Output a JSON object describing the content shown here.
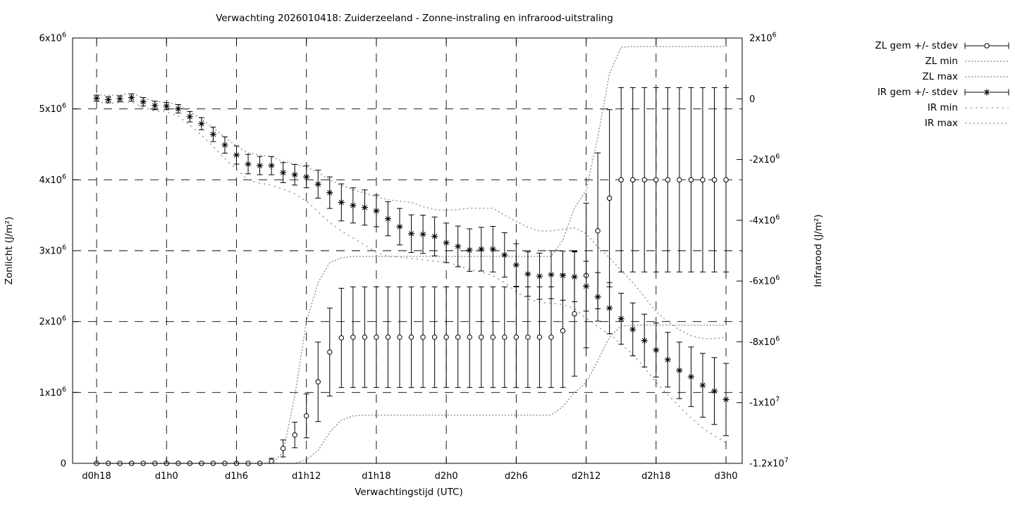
{
  "title": "Verwachting 2026010418: Zuiderzeeland - Zonne-instraling en infrarood-uitstraling",
  "axes": {
    "x": {
      "label": "Verwachtingstijd (UTC)",
      "tick_hours": [
        0,
        6,
        12,
        18,
        24,
        30,
        36,
        42,
        48,
        54
      ],
      "tick_labels": [
        "d0h18",
        "d1h0",
        "d1h6",
        "d1h12",
        "d1h18",
        "d2h0",
        "d2h6",
        "d2h12",
        "d2h18",
        "d3h0"
      ]
    },
    "y_left": {
      "label": "Zonlicht (J/m²)",
      "tick_values_e6": [
        0,
        1,
        2,
        3,
        4,
        5,
        6
      ],
      "tick_labels": [
        "0",
        "1x10^6",
        "2x10^6",
        "3x10^6",
        "4x10^6",
        "5x10^6",
        "6x10^6"
      ],
      "range_e6": [
        0,
        6
      ]
    },
    "y_right": {
      "label": "Infrarood (J/m²)",
      "tick_values_e6": [
        -12,
        -10,
        -8,
        -6,
        -4,
        -2,
        0,
        2
      ],
      "tick_labels": [
        "-1.2x10^7",
        "-1x10^7",
        "-8x10^6",
        "-6x10^6",
        "-4x10^6",
        "-2x10^6",
        "0",
        "2x10^6"
      ],
      "range_e6": [
        -12,
        2
      ]
    }
  },
  "legend": {
    "items": [
      {
        "label": "ZL gem +/- stdev",
        "sample": "errorbar",
        "marker": "circle"
      },
      {
        "label": "ZL min",
        "sample": "dotted-fine"
      },
      {
        "label": "ZL max",
        "sample": "dotted-fine"
      },
      {
        "label": "IR gem +/- stdev",
        "sample": "errorbar",
        "marker": "asterisk"
      },
      {
        "label": "IR min",
        "sample": "dotted-sparse"
      },
      {
        "label": "IR max",
        "sample": "dotted-medium"
      }
    ]
  },
  "colors": {
    "foreground": "#000000",
    "envelope": "#999999",
    "grid": "#000000",
    "background": "#ffffff"
  },
  "chart_data": {
    "type": "line",
    "subtype": "errorbars with min/max dotted envelopes (gnuplot style)",
    "title": "Verwachting 2026010418: Zuiderzeeland - Zonne-instraling en infrarood-uitstraling",
    "xlabel": "Verwachtingstijd (UTC)",
    "ylabel_left": "Zonlicht (J/m²)",
    "ylabel_right": "Infrarood (J/m²)",
    "unit": "1e6 J/m2",
    "n_points": 55,
    "x_start_hour": 0,
    "x_step_hour": 1,
    "x_first_label": "d0h18",
    "x_last_label": "d3h0",
    "xlim_hours": [
      -2.06,
      55.39
    ],
    "ylim_left_e6": [
      0,
      6
    ],
    "ylim_right_e6": [
      -12,
      2
    ],
    "grid": true,
    "legend_position": "outside top-right",
    "series": [
      {
        "name": "ZL gem +/- stdev",
        "axis": "left",
        "style": "errorbar",
        "marker": "circle",
        "values": [
          0,
          0,
          0,
          0,
          0,
          0,
          0,
          0,
          0,
          0,
          0,
          0,
          0,
          0,
          0,
          0.03,
          0.21,
          0.4,
          0.67,
          1.15,
          1.57,
          1.77,
          1.78,
          1.78,
          1.78,
          1.78,
          1.78,
          1.78,
          1.78,
          1.78,
          1.78,
          1.78,
          1.78,
          1.78,
          1.78,
          1.78,
          1.78,
          1.78,
          1.78,
          1.78,
          1.87,
          2.11,
          2.65,
          3.28,
          3.74,
          4,
          4,
          4,
          4,
          4,
          4,
          4,
          4,
          4,
          4
        ],
        "stdev": [
          0,
          0,
          0,
          0,
          0,
          0,
          0,
          0,
          0,
          0,
          0,
          0,
          0,
          0,
          0,
          0.04,
          0.12,
          0.18,
          0.31,
          0.56,
          0.62,
          0.7,
          0.71,
          0.71,
          0.71,
          0.71,
          0.71,
          0.71,
          0.71,
          0.71,
          0.71,
          0.71,
          0.71,
          0.71,
          0.71,
          0.71,
          0.71,
          0.71,
          0.71,
          0.71,
          0.8,
          0.88,
          1.02,
          1.1,
          1.25,
          1.3,
          1.3,
          1.3,
          1.3,
          1.3,
          1.3,
          1.3,
          1.3,
          1.3,
          1.3
        ]
      },
      {
        "name": "ZL min",
        "axis": "left",
        "style": "dotted-fine",
        "values": [
          0,
          0,
          0,
          0,
          0,
          0,
          0,
          0,
          0,
          0,
          0,
          0,
          0,
          0,
          0,
          0,
          0,
          0,
          0.05,
          0.18,
          0.44,
          0.61,
          0.67,
          0.68,
          0.68,
          0.68,
          0.68,
          0.68,
          0.68,
          0.68,
          0.68,
          0.68,
          0.68,
          0.68,
          0.68,
          0.68,
          0.68,
          0.68,
          0.68,
          0.68,
          0.8,
          1,
          1.14,
          1.45,
          1.78,
          1.94,
          1.95,
          1.95,
          1.95,
          1.95,
          1.95,
          1.95,
          1.95,
          1.95,
          1.95
        ]
      },
      {
        "name": "ZL max",
        "axis": "left",
        "style": "dotted-fine",
        "values": [
          0,
          0,
          0,
          0,
          0,
          0,
          0,
          0,
          0,
          0,
          0,
          0,
          0,
          0,
          0,
          0,
          0.15,
          0.95,
          2,
          2.55,
          2.83,
          2.9,
          2.92,
          2.92,
          2.92,
          2.92,
          2.92,
          2.92,
          2.92,
          2.92,
          2.92,
          2.92,
          2.92,
          2.92,
          2.92,
          2.92,
          2.92,
          2.92,
          2.92,
          2.92,
          3.15,
          3.6,
          3.85,
          4.6,
          5.5,
          5.87,
          5.88,
          5.88,
          5.88,
          5.88,
          5.88,
          5.88,
          5.88,
          5.88,
          5.88
        ]
      },
      {
        "name": "IR gem +/- stdev",
        "axis": "right",
        "style": "errorbar",
        "marker": "asterisk",
        "values": [
          0.02,
          -0.03,
          0,
          0.04,
          -0.1,
          -0.22,
          -0.24,
          -0.33,
          -0.59,
          -0.82,
          -1.17,
          -1.52,
          -1.85,
          -2.15,
          -2.2,
          -2.2,
          -2.43,
          -2.5,
          -2.57,
          -2.81,
          -3.09,
          -3.41,
          -3.51,
          -3.58,
          -3.69,
          -3.95,
          -4.21,
          -4.44,
          -4.46,
          -4.53,
          -4.74,
          -4.86,
          -4.98,
          -4.95,
          -4.95,
          -5.14,
          -5.47,
          -5.77,
          -5.84,
          -5.79,
          -5.82,
          -5.86,
          -6.17,
          -6.52,
          -6.89,
          -7.24,
          -7.59,
          -7.96,
          -8.27,
          -8.59,
          -8.94,
          -9.15,
          -9.43,
          -9.62,
          -9.9
        ],
        "stdev": [
          0.1,
          0.1,
          0.1,
          0.12,
          0.14,
          0.14,
          0.12,
          0.14,
          0.17,
          0.2,
          0.24,
          0.27,
          0.3,
          0.32,
          0.3,
          0.3,
          0.33,
          0.34,
          0.36,
          0.46,
          0.52,
          0.61,
          0.58,
          0.58,
          0.52,
          0.56,
          0.6,
          0.62,
          0.63,
          0.64,
          0.65,
          0.67,
          0.7,
          0.72,
          0.75,
          0.73,
          0.7,
          0.73,
          0.76,
          0.79,
          0.81,
          0.82,
          0.82,
          0.8,
          0.84,
          0.84,
          0.87,
          0.87,
          0.89,
          0.9,
          0.93,
          0.98,
          1.05,
          1.1,
          1.19
        ]
      },
      {
        "name": "IR min",
        "axis": "right",
        "style": "dotted-sparse",
        "values": [
          -0.1,
          -0.15,
          -0.12,
          -0.1,
          -0.29,
          -0.4,
          -0.43,
          -0.57,
          -0.87,
          -1.2,
          -1.57,
          -1.97,
          -2.32,
          -2.67,
          -2.78,
          -2.85,
          -2.97,
          -3.13,
          -3.37,
          -3.72,
          -4.07,
          -4.35,
          -4.58,
          -4.81,
          -5.05,
          -5.19,
          -5.21,
          -5.26,
          -5.3,
          -5.35,
          -5.37,
          -5.49,
          -5.63,
          -5.7,
          -5.82,
          -6.05,
          -6.35,
          -6.59,
          -6.7,
          -6.73,
          -6.77,
          -6.91,
          -7.22,
          -7.5,
          -7.75,
          -8.08,
          -8.41,
          -8.85,
          -9.34,
          -9.74,
          -10.13,
          -10.51,
          -10.83,
          -11.09,
          -11.32
        ]
      },
      {
        "name": "IR max",
        "axis": "right",
        "style": "dotted-medium",
        "values": [
          0.13,
          0.11,
          0.13,
          0.18,
          0.04,
          -0.08,
          -0.12,
          -0.19,
          -0.43,
          -0.66,
          -0.96,
          -1.27,
          -1.55,
          -1.78,
          -1.85,
          -1.9,
          -2.06,
          -2.15,
          -2.25,
          -2.43,
          -2.67,
          -2.85,
          -2.99,
          -3.11,
          -3.23,
          -3.32,
          -3.37,
          -3.41,
          -3.55,
          -3.65,
          -3.67,
          -3.65,
          -3.6,
          -3.6,
          -3.6,
          -3.83,
          -4.04,
          -4.23,
          -4.35,
          -4.35,
          -4.3,
          -4.25,
          -4.44,
          -4.88,
          -5.23,
          -5.65,
          -6.05,
          -6.52,
          -7.01,
          -7.33,
          -7.61,
          -7.8,
          -7.89,
          -7.89,
          -7.85
        ]
      }
    ]
  }
}
